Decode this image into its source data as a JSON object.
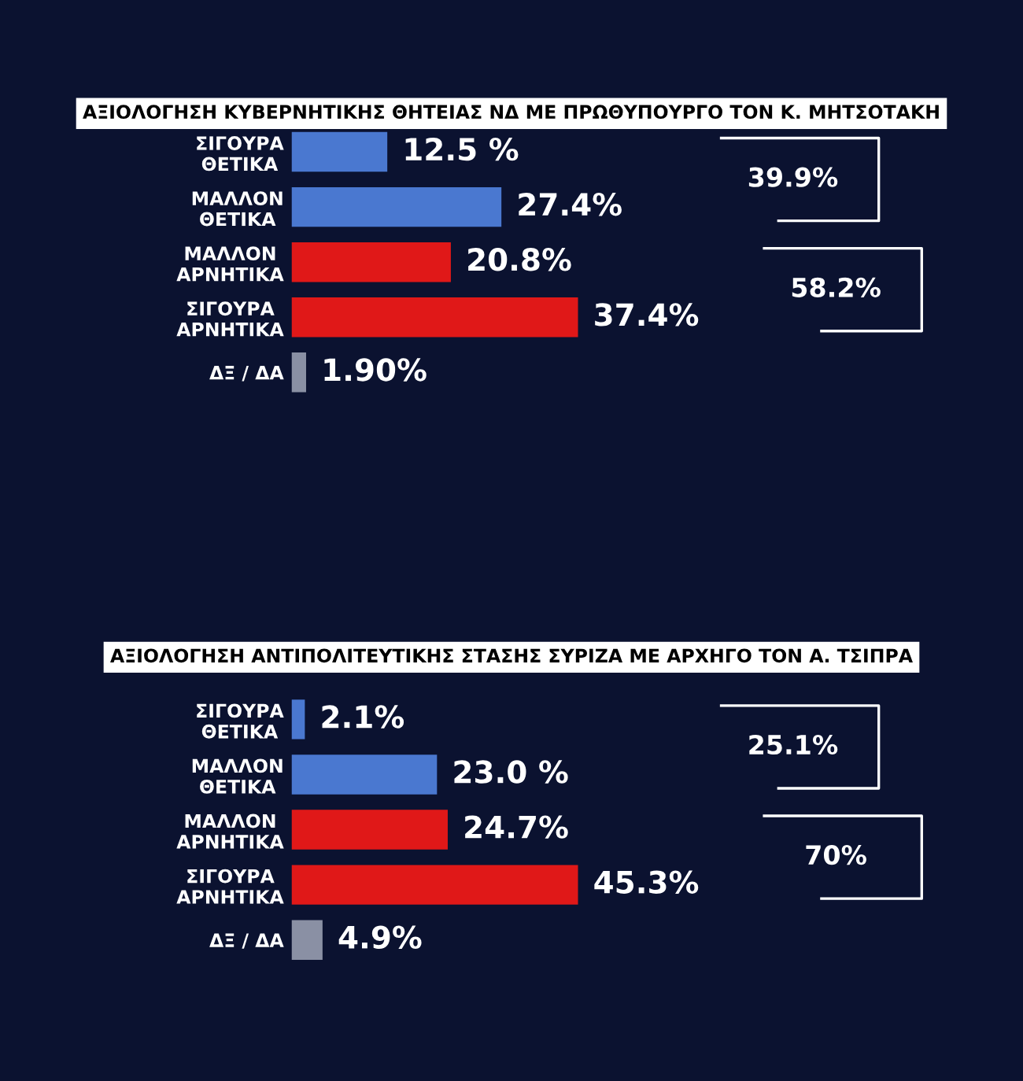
{
  "chart_data": [
    {
      "type": "bar",
      "orientation": "horizontal",
      "title": "ΑΞΙΟΛΟΓΗΣΗ ΚΥΒΕΡΝΗΤΙΚΗΣ ΘΗΤΕΙΑΣ ΝΔ ΜΕ ΠΡΩΘΥΠΟΥΡΓΟ ΤΟΝ Κ. ΜΗΤΣΟΤΑΚΗ",
      "categories": [
        "ΣΙΓΟΥΡΑ\nΘΕΤΙΚΑ",
        "ΜΑΛΛΟΝ\nΘΕΤΙΚΑ",
        "ΜΑΛΛΟΝ\nΑΡΝΗΤΙΚΑ",
        "ΣΙΓΟΥΡΑ\nΑΡΝΗΤΙΚΑ",
        "ΔΞ / ΔΑ"
      ],
      "values": [
        12.5,
        27.4,
        20.8,
        37.4,
        1.9
      ],
      "value_labels": [
        "12.5 %",
        "27.4%",
        "20.8%",
        "37.4%",
        "1.90%"
      ],
      "colors": [
        "#4a78d0",
        "#4a78d0",
        "#e01818",
        "#e01818",
        "#8a90a4"
      ],
      "tick_labels": false,
      "annotations": [
        "39.9%",
        "58.2%"
      ]
    },
    {
      "type": "bar",
      "orientation": "horizontal",
      "title": "ΑΞΙΟΛΟΓΗΣΗ ΑΝΤΙΠΟΛΙΤΕΥΤΙΚΗΣ ΣΤΑΣΗΣ ΣΥΡΙΖΑ ΜΕ ΑΡΧΗΓΟ ΤΟΝ Α. ΤΣΙΠΡΑ",
      "categories": [
        "ΣΙΓΟΥΡΑ\nΘΕΤΙΚΑ",
        "ΜΑΛΛΟΝ\nΘΕΤΙΚΑ",
        "ΜΑΛΛΟΝ\nΑΡΝΗΤΙΚΑ",
        "ΣΙΓΟΥΡΑ\nΑΡΝΗΤΙΚΑ",
        "ΔΞ / ΔΑ"
      ],
      "values": [
        2.1,
        23.0,
        24.7,
        45.3,
        4.9
      ],
      "value_labels": [
        "2.1%",
        "23.0 %",
        "24.7%",
        "45.3%",
        "4.9%"
      ],
      "colors": [
        "#4a78d0",
        "#4a78d0",
        "#e01818",
        "#e01818",
        "#8a90a4"
      ],
      "tick_labels": false,
      "annotations": [
        "25.1%",
        "70%"
      ]
    }
  ]
}
